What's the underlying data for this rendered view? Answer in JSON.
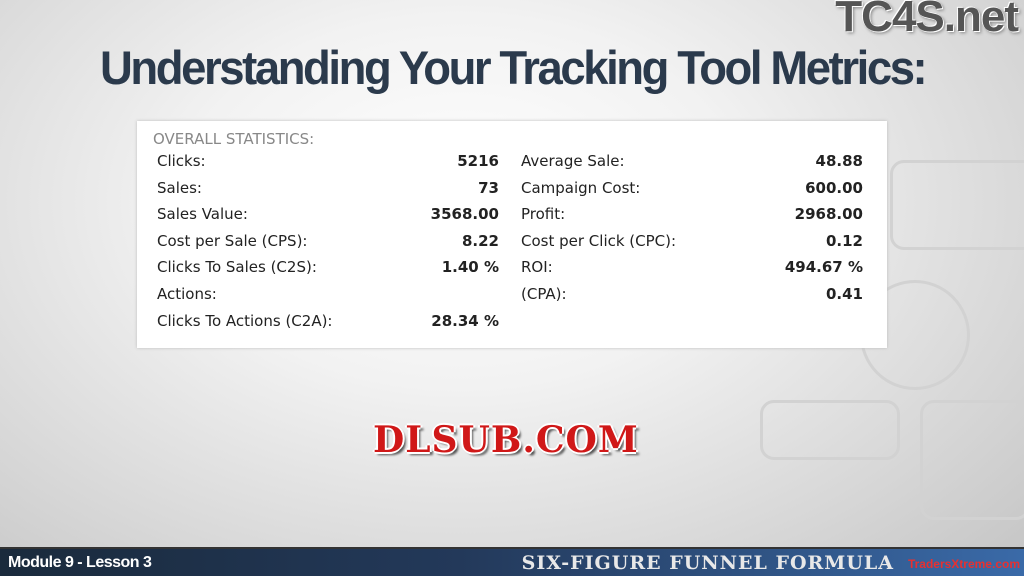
{
  "slide": {
    "title": "Understanding Your Tracking Tool Metrics:",
    "logo": "TC4S.net"
  },
  "stats": {
    "heading": "OVERALL STATISTICS:",
    "left": [
      {
        "label": "Clicks:",
        "value": "5216"
      },
      {
        "label": "Sales:",
        "value": "73"
      },
      {
        "label": "Sales Value:",
        "value": "3568.00"
      },
      {
        "label": "Cost per Sale (CPS):",
        "value": "8.22"
      },
      {
        "label": "Clicks To Sales (C2S):",
        "value": "1.40 %"
      },
      {
        "label": "Actions:",
        "value": ""
      },
      {
        "label": "Clicks To Actions (C2A):",
        "value": "28.34 %"
      }
    ],
    "right": [
      {
        "label": "Average Sale:",
        "value": "48.88"
      },
      {
        "label": "Campaign Cost:",
        "value": "600.00"
      },
      {
        "label": "Profit:",
        "value": "2968.00"
      },
      {
        "label": "Cost per Click (CPC):",
        "value": "0.12"
      },
      {
        "label": "ROI:",
        "value": "494.67 %"
      },
      {
        "label": "(CPA):",
        "value": "0.41"
      }
    ]
  },
  "watermark": "DLSUB.COM",
  "footer": {
    "module": "Module 9 - Lesson 3",
    "brand": "SIX-FIGURE FUNNEL FORMULA",
    "site": "TradersXtreme.com"
  }
}
